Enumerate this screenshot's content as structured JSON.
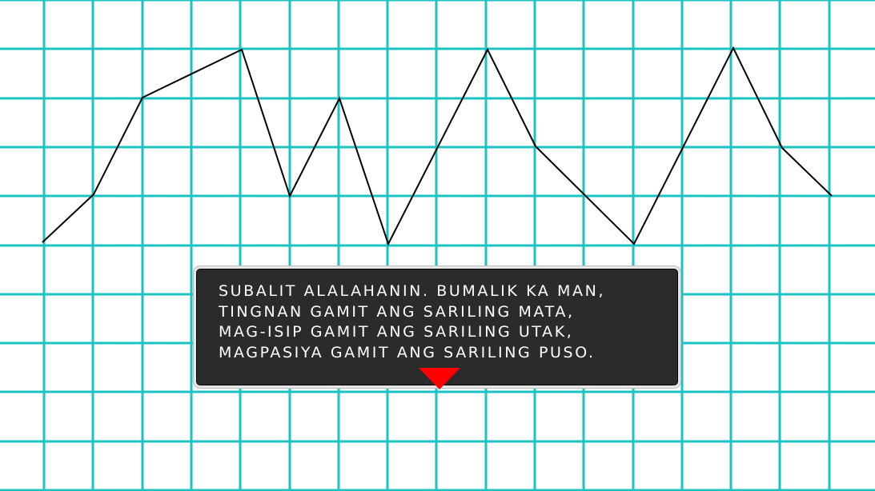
{
  "colors": {
    "background": "#ffffff",
    "grid": "#1cc3c3",
    "line": "#000000",
    "dialog_bg": "#2b2b2b",
    "dialog_border": "#e6e6e6",
    "dialog_text": "#ffffff",
    "advance_arrow": "#ff0000"
  },
  "dialog": {
    "lines": [
      "SUBALIT ALALAHANIN. BUMALIK KA MAN,",
      "TINGNAN GAMIT ANG SARILING MATA,",
      "MAG-ISIP GAMIT ANG SARILING UTAK,",
      "MAGPASIYA GAMIT ANG SARILING PUSO."
    ],
    "advance_icon": "down-triangle-icon"
  }
}
